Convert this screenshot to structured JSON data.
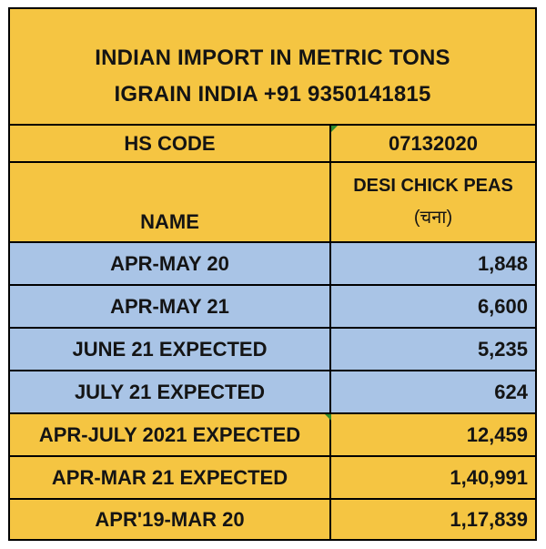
{
  "title": {
    "line1": "INDIAN IMPORT IN METRIC TONS",
    "line2": "IGRAIN INDIA +91 9350141815"
  },
  "hs_code": {
    "label": "HS CODE",
    "value": "07132020"
  },
  "name_header": {
    "label": "NAME",
    "product_line1": "DESI CHICK PEAS",
    "product_line2": "(चना)"
  },
  "rows": [
    {
      "label": "APR-MAY 20",
      "value": "1,848"
    },
    {
      "label": "APR-MAY 21",
      "value": "6,600"
    },
    {
      "label": "JUNE 21 EXPECTED",
      "value": "5,235"
    },
    {
      "label": "JULY 21 EXPECTED",
      "value": "624"
    },
    {
      "label": "APR-JULY 2021 EXPECTED",
      "value": "12,459"
    },
    {
      "label": "APR-MAR 21 EXPECTED",
      "value": "1,40,991"
    },
    {
      "label": "APR'19-MAR 20",
      "value": "1,17,839"
    }
  ],
  "colors": {
    "yellow": "#f5c542",
    "blue": "#a9c4e6",
    "marker": "#2e8b2e"
  }
}
